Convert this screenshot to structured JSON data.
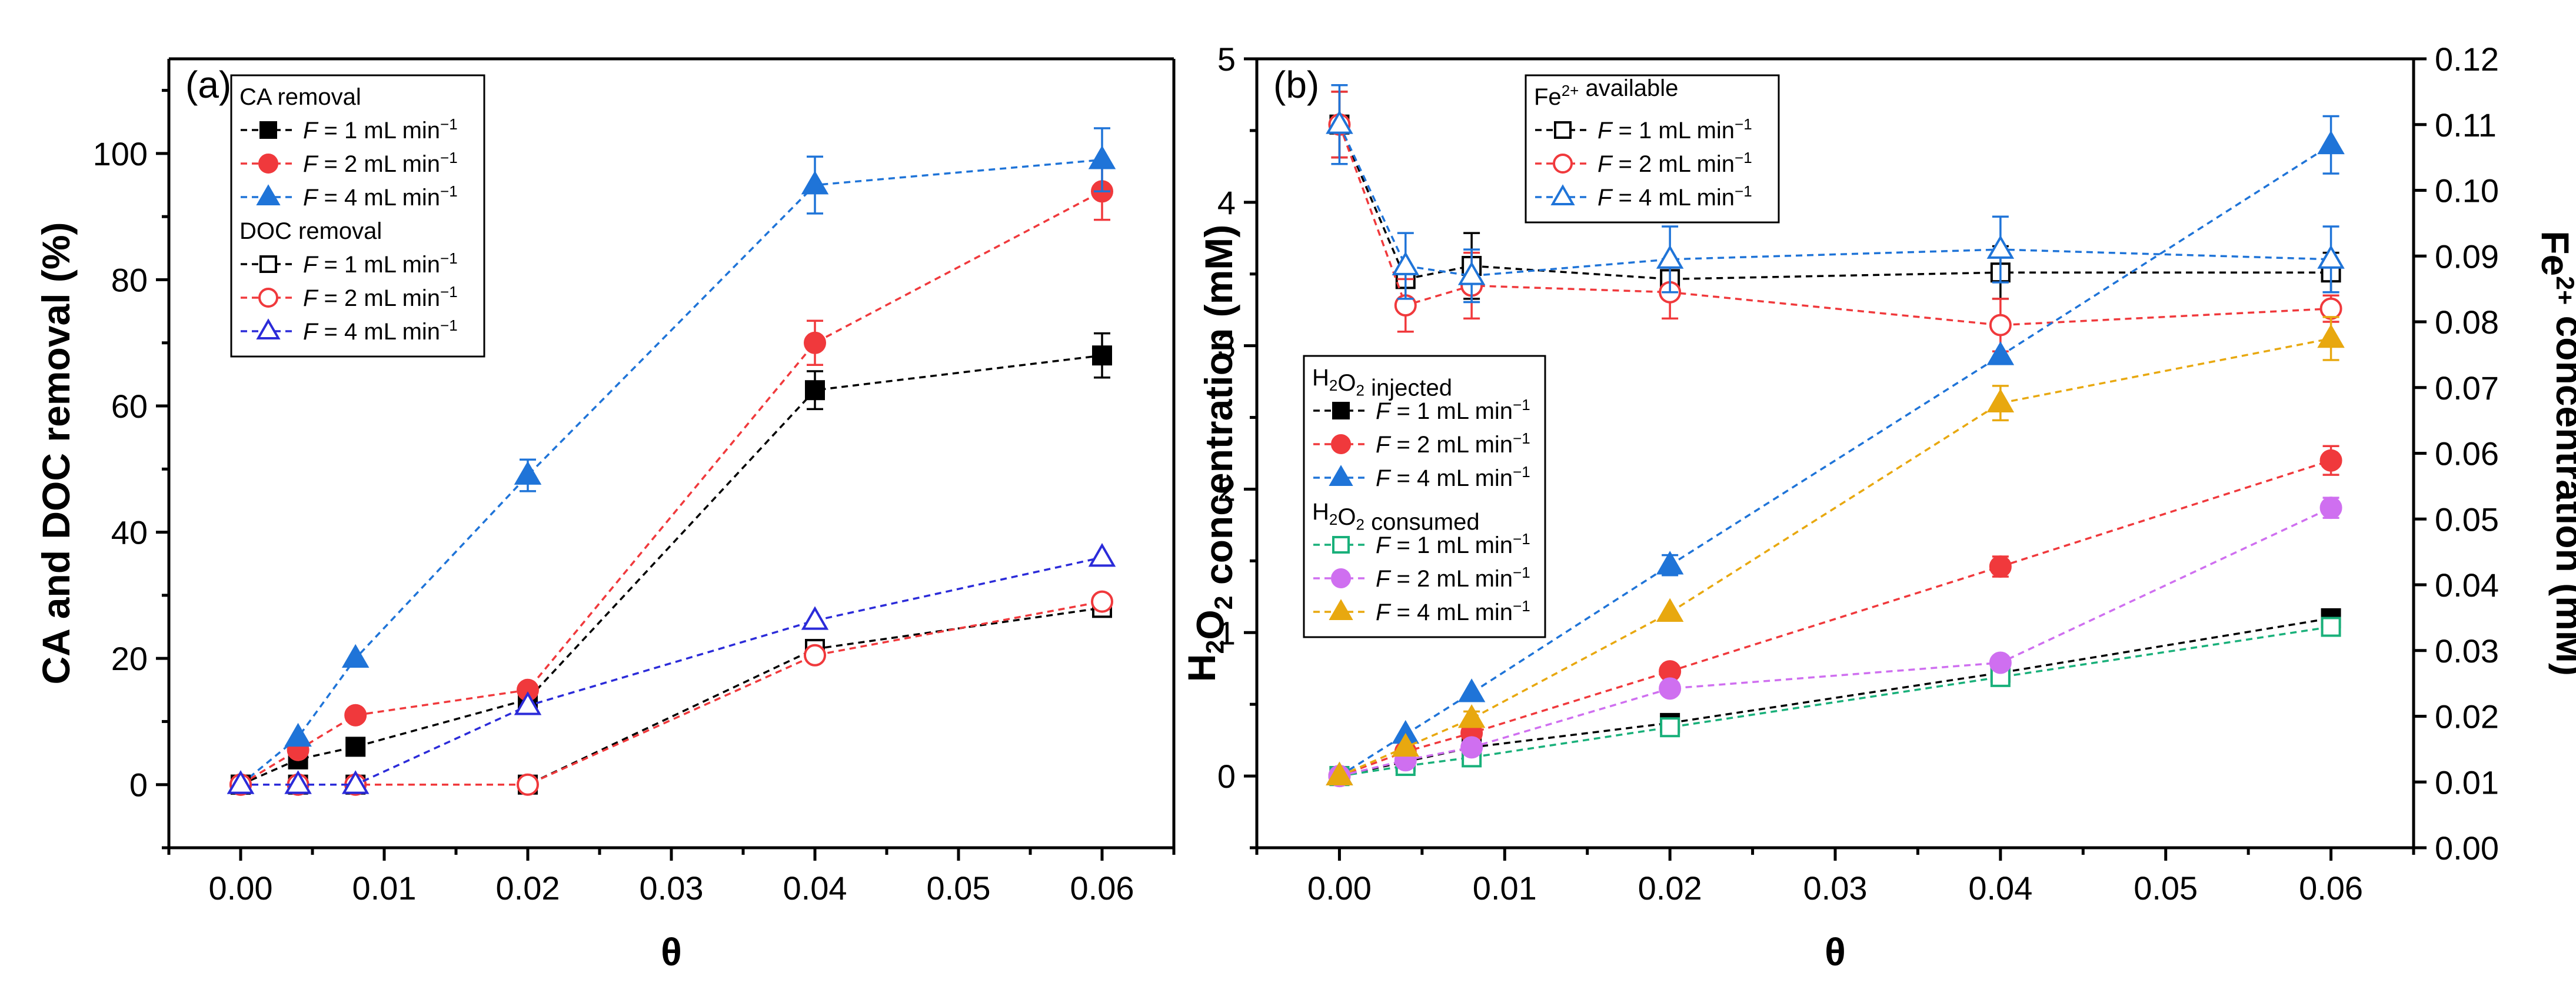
{
  "chart_data": [
    {
      "type": "scatter",
      "panel_label": "(a)",
      "xlabel": "θ",
      "ylabel": "CA and DOC removal (%)",
      "xlim": [
        -0.005,
        0.065
      ],
      "ylim": [
        -10,
        115
      ],
      "xticks": [
        0.0,
        0.01,
        0.02,
        0.03,
        0.04,
        0.05,
        0.06
      ],
      "xtick_labels": [
        "0.00",
        "0.01",
        "0.02",
        "0.03",
        "0.04",
        "0.05",
        "0.06"
      ],
      "yticks": [
        0,
        20,
        40,
        60,
        80,
        100
      ],
      "ytick_labels": [
        "0",
        "20",
        "40",
        "60",
        "80",
        "100"
      ],
      "legend_location": "top-left",
      "legend_groups": [
        {
          "header": "CA removal",
          "entries": [
            0,
            1,
            2
          ]
        },
        {
          "header": "DOC removal",
          "entries": [
            3,
            4,
            5
          ]
        }
      ],
      "series": [
        {
          "name": "F = 1 mL min⁻¹",
          "group": "CA removal",
          "color": "#000000",
          "marker": "square",
          "filled": true,
          "x": [
            0,
            0.004,
            0.008,
            0.02,
            0.04,
            0.06
          ],
          "y": [
            0,
            4,
            6,
            13.5,
            62.5,
            68
          ],
          "err": [
            0,
            0,
            0,
            0,
            3,
            3.5
          ]
        },
        {
          "name": "F = 2 mL min⁻¹",
          "group": "CA removal",
          "color": "#f0393c",
          "marker": "circle",
          "filled": true,
          "x": [
            0,
            0.004,
            0.008,
            0.02,
            0.04,
            0.06
          ],
          "y": [
            0,
            5.5,
            11,
            15,
            70,
            94
          ],
          "err": [
            0,
            0,
            0,
            0,
            3.5,
            4.5
          ]
        },
        {
          "name": "F = 4 mL min⁻¹",
          "group": "CA removal",
          "color": "#1f74d8",
          "marker": "triangle",
          "filled": true,
          "x": [
            0,
            0.004,
            0.008,
            0.02,
            0.04,
            0.06
          ],
          "y": [
            0,
            7.5,
            20,
            49,
            95,
            99
          ],
          "err": [
            0,
            0,
            0,
            2.5,
            4.5,
            5
          ]
        },
        {
          "name": "F = 1 mL min⁻¹",
          "group": "DOC removal",
          "color": "#000000",
          "marker": "square",
          "filled": false,
          "x": [
            0,
            0.004,
            0.008,
            0.02,
            0.04,
            0.06
          ],
          "y": [
            0,
            0,
            0,
            0,
            21.5,
            28
          ],
          "err": [
            0,
            0,
            0,
            0,
            0,
            0
          ]
        },
        {
          "name": "F = 2 mL min⁻¹",
          "group": "DOC removal",
          "color": "#f0393c",
          "marker": "circle",
          "filled": false,
          "x": [
            0,
            0.004,
            0.008,
            0.02,
            0.04,
            0.06
          ],
          "y": [
            0,
            0,
            0,
            0,
            20.5,
            29
          ],
          "err": [
            0,
            0,
            0,
            0,
            0,
            0
          ]
        },
        {
          "name": "F = 4 mL min⁻¹",
          "group": "DOC removal",
          "color": "#2b2bd9",
          "marker": "triangle",
          "filled": false,
          "x": [
            0,
            0.004,
            0.008,
            0.02,
            0.04,
            0.06
          ],
          "y": [
            0,
            0,
            0,
            12.5,
            26,
            36
          ],
          "err": [
            0,
            0,
            0,
            0,
            0,
            0
          ]
        }
      ]
    },
    {
      "type": "scatter",
      "panel_label": "(b)",
      "xlabel": "θ",
      "ylabel": "H₂O₂ concentration (mM)",
      "y2label": "Fe²⁺ concentration (mM)",
      "xlim": [
        -0.005,
        0.065
      ],
      "ylim": [
        -0.5,
        5
      ],
      "y2lim": [
        0,
        0.12
      ],
      "xticks": [
        0.0,
        0.01,
        0.02,
        0.03,
        0.04,
        0.05,
        0.06
      ],
      "xtick_labels": [
        "0.00",
        "0.01",
        "0.02",
        "0.03",
        "0.04",
        "0.05",
        "0.06"
      ],
      "yticks": [
        0,
        1,
        2,
        3,
        4,
        5
      ],
      "ytick_labels": [
        "0",
        "1",
        "2",
        "3",
        "4",
        "5"
      ],
      "y2ticks": [
        0,
        0.01,
        0.02,
        0.03,
        0.04,
        0.05,
        0.06,
        0.07,
        0.08,
        0.09,
        0.1,
        0.11,
        0.12
      ],
      "y2tick_labels": [
        "0.00",
        "0.01",
        "0.02",
        "0.03",
        "0.04",
        "0.05",
        "0.06",
        "0.07",
        "0.08",
        "0.09",
        "0.10",
        "0.11",
        "0.12"
      ],
      "legend_groups": [
        {
          "header": "Fe²⁺ available",
          "location": "top-center",
          "entries": [
            0,
            1,
            2
          ]
        },
        {
          "header": "H₂O₂ injected",
          "location": "center-left",
          "entries": [
            3,
            4,
            5
          ]
        },
        {
          "header": "H₂O₂ consumed",
          "location": "center-left",
          "entries": [
            6,
            7,
            8
          ]
        }
      ],
      "series": [
        {
          "name": "F = 1 mL min⁻¹",
          "group": "Fe²⁺ available",
          "axis": "right",
          "color": "#000000",
          "marker": "square",
          "filled": false,
          "x": [
            0,
            0.004,
            0.008,
            0.02,
            0.04,
            0.06
          ],
          "y": [
            0.11,
            0.0865,
            0.0885,
            0.0865,
            0.0875,
            0.0875
          ],
          "err": [
            0.005,
            0,
            0.005,
            0.003,
            0.004,
            0.003
          ]
        },
        {
          "name": "F = 2 mL min⁻¹",
          "group": "Fe²⁺ available",
          "axis": "right",
          "color": "#f0393c",
          "marker": "circle",
          "filled": false,
          "x": [
            0,
            0.004,
            0.008,
            0.02,
            0.04,
            0.06
          ],
          "y": [
            0.11,
            0.0825,
            0.0855,
            0.0845,
            0.0795,
            0.082
          ],
          "err": [
            0.005,
            0.004,
            0.005,
            0.004,
            0.004,
            0.002
          ]
        },
        {
          "name": "F = 4 mL min⁻¹",
          "group": "Fe²⁺ available",
          "axis": "right",
          "color": "#1f74d8",
          "marker": "triangle",
          "filled": false,
          "x": [
            0,
            0.004,
            0.008,
            0.02,
            0.04,
            0.06
          ],
          "y": [
            0.11,
            0.0885,
            0.087,
            0.0895,
            0.091,
            0.0895
          ],
          "err": [
            0.006,
            0.005,
            0.004,
            0.005,
            0.005,
            0.005
          ]
        },
        {
          "name": "F = 1 mL min⁻¹",
          "group": "H₂O₂ injected",
          "axis": "left",
          "color": "#000000",
          "marker": "square",
          "filled": true,
          "x": [
            0,
            0.004,
            0.008,
            0.02,
            0.04,
            0.06
          ],
          "y": [
            0,
            0.1,
            0.2,
            0.37,
            0.72,
            1.1
          ],
          "err": [
            0,
            0,
            0,
            0,
            0,
            0
          ]
        },
        {
          "name": "F = 2 mL min⁻¹",
          "group": "H₂O₂ injected",
          "axis": "left",
          "color": "#f0393c",
          "marker": "circle",
          "filled": true,
          "x": [
            0,
            0.004,
            0.008,
            0.02,
            0.04,
            0.06
          ],
          "y": [
            0,
            0.17,
            0.3,
            0.73,
            1.46,
            2.2
          ],
          "err": [
            0,
            0,
            0,
            0,
            0.07,
            0.1
          ]
        },
        {
          "name": "F = 4 mL min⁻¹",
          "group": "H₂O₂ injected",
          "axis": "left",
          "color": "#1f74d8",
          "marker": "triangle",
          "filled": true,
          "x": [
            0,
            0.004,
            0.008,
            0.02,
            0.04,
            0.06
          ],
          "y": [
            0,
            0.29,
            0.58,
            1.47,
            2.93,
            4.4
          ],
          "err": [
            0,
            0,
            0,
            0.07,
            0,
            0.2
          ]
        },
        {
          "name": "F = 1 mL min⁻¹",
          "group": "H₂O₂ consumed",
          "axis": "left",
          "color": "#19b07a",
          "marker": "square",
          "filled": false,
          "x": [
            0,
            0.004,
            0.008,
            0.02,
            0.04,
            0.06
          ],
          "y": [
            0,
            0.07,
            0.13,
            0.34,
            0.69,
            1.04
          ],
          "err": [
            0,
            0,
            0,
            0,
            0,
            0
          ]
        },
        {
          "name": "F = 2 mL min⁻¹",
          "group": "H₂O₂ consumed",
          "axis": "left",
          "color": "#cf6ff0",
          "marker": "circle",
          "filled": true,
          "x": [
            0,
            0.004,
            0.008,
            0.02,
            0.04,
            0.06
          ],
          "y": [
            0,
            0.11,
            0.2,
            0.61,
            0.79,
            1.87
          ],
          "err": [
            0,
            0,
            0,
            0,
            0,
            0.07
          ]
        },
        {
          "name": "F = 4 mL min⁻¹",
          "group": "H₂O₂ consumed",
          "axis": "left",
          "color": "#e8a80f",
          "marker": "triangle",
          "filled": true,
          "x": [
            0,
            0.004,
            0.008,
            0.02,
            0.04,
            0.06
          ],
          "y": [
            0,
            0.2,
            0.4,
            1.14,
            2.6,
            3.05
          ],
          "err": [
            0,
            0,
            0.05,
            0,
            0.12,
            0.15
          ]
        }
      ]
    }
  ]
}
